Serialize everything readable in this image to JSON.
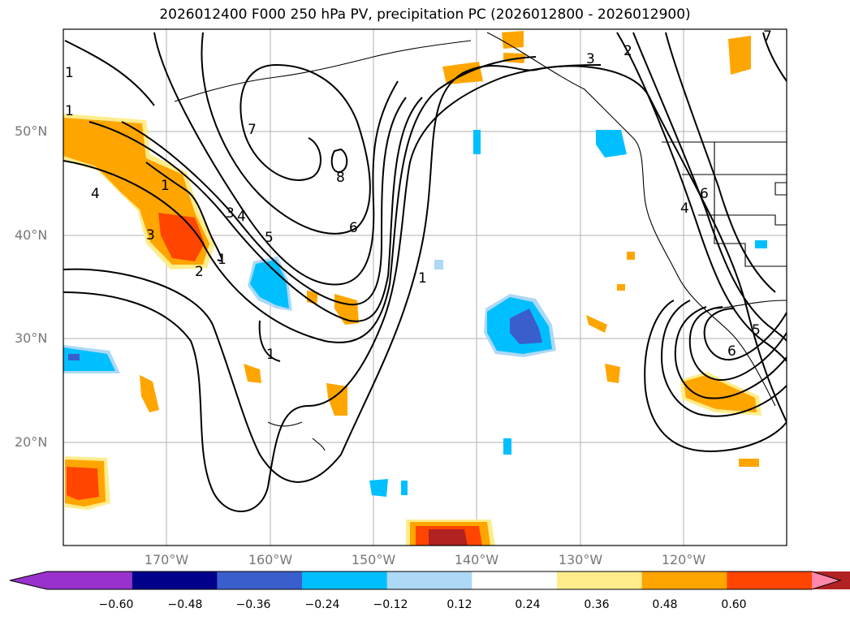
{
  "title": "2026012400 F000 250 hPa PV, precipitation PC (2026012800 - 2026012900)",
  "map": {
    "lat_labels": [
      "50°N",
      "40°N",
      "30°N",
      "20°N"
    ],
    "lon_labels": [
      "170°W",
      "160°W",
      "150°W",
      "140°W",
      "130°W",
      "120°W"
    ],
    "contour_labels": [
      "1",
      "1",
      "1",
      "1",
      "1",
      "1",
      "2",
      "2",
      "3",
      "3",
      "3",
      "4",
      "4",
      "4",
      "5",
      "5",
      "6",
      "6",
      "6",
      "7",
      "8",
      "7"
    ]
  },
  "colorbar": {
    "ticks": [
      "−0.60",
      "−0.48",
      "−0.36",
      "−0.24",
      "−0.12",
      "0.12",
      "0.24",
      "0.36",
      "0.48",
      "0.60"
    ],
    "colors": [
      "#9932CC",
      "#00008B",
      "#3A5FCD",
      "#00BFFF",
      "#ADD8F6",
      "#FFFFFF",
      "#FFEC8B",
      "#FFA500",
      "#FF4500",
      "#B22222",
      "#FF88AA"
    ]
  }
}
